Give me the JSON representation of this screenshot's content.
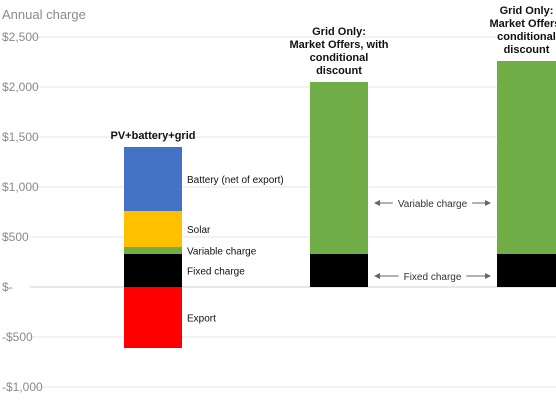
{
  "chart_data": {
    "type": "bar",
    "stacked": true,
    "ylabel": "Annual charge",
    "ylim": [
      -1000,
      2600
    ],
    "yticks": [
      {
        "value": 2500,
        "label": "$2,500"
      },
      {
        "value": 2000,
        "label": "$2,000"
      },
      {
        "value": 1500,
        "label": "$1,500"
      },
      {
        "value": 1000,
        "label": "$1,000"
      },
      {
        "value": 500,
        "label": "$500"
      },
      {
        "value": 0,
        "label": "$-"
      },
      {
        "value": -500,
        "label": "-$500"
      },
      {
        "value": -1000,
        "label": "-$1,000"
      }
    ],
    "grid": true,
    "categories": [
      {
        "title": [
          "PV+battery+grid"
        ]
      },
      {
        "title": [
          "Grid Only:",
          "Market Offers, with",
          "conditional",
          "discount"
        ]
      },
      {
        "title": [
          "Grid Only:",
          "Market Offers,",
          "conditional",
          "discount"
        ]
      }
    ],
    "series": [
      {
        "name": "Fixed charge",
        "color": "#000000",
        "values": [
          330,
          330,
          330
        ]
      },
      {
        "name": "Variable charge",
        "color": "#70ad47",
        "values": [
          70,
          1720,
          1930
        ]
      },
      {
        "name": "Solar",
        "color": "#ffc000",
        "values": [
          360,
          0,
          0
        ]
      },
      {
        "name": "Battery (net of export)",
        "color": "#4472c4",
        "values": [
          640,
          0,
          0
        ]
      },
      {
        "name": "Export",
        "color": "#ff0000",
        "values": [
          -610,
          0,
          0
        ]
      }
    ],
    "annotations": [
      {
        "text": "Variable charge",
        "value": 840
      },
      {
        "text": "Fixed charge",
        "value": 110
      }
    ]
  }
}
